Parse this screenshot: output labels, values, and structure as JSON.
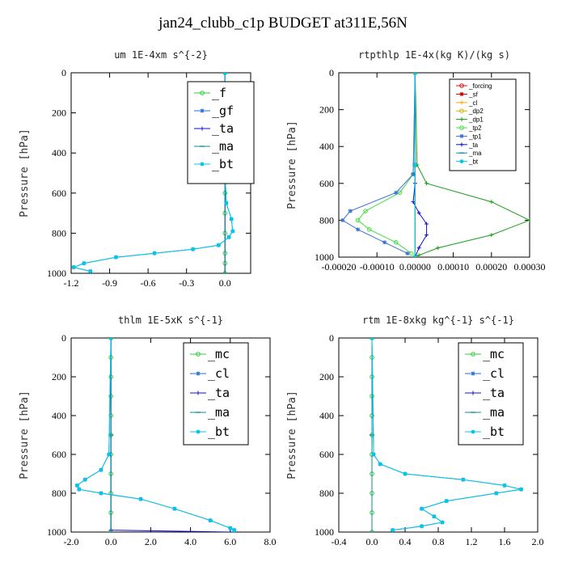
{
  "title": "jan24_clubb_c1p  BUDGET at311E,56N",
  "chart_data": [
    {
      "type": "line",
      "title": "um   1E-4xm s^{-2}",
      "ylabel": "Pressure [hPa]",
      "xlim": [
        -1.2,
        0.2
      ],
      "ylim": [
        1000,
        0
      ],
      "xticks": [
        -1.2,
        -0.9,
        -0.6,
        -0.3,
        0.0
      ],
      "xtick_labels": [
        "-1.2",
        "-0.9",
        "-0.6",
        "-0.3",
        "0.0"
      ],
      "yticks": [
        0,
        200,
        400,
        600,
        800,
        1000
      ],
      "legend_position": "top-right",
      "series": [
        {
          "name": "_f",
          "color": "#2ecc40",
          "marker": "circle",
          "x": [
            0,
            0,
            0,
            0,
            0,
            0,
            0,
            0,
            0,
            0,
            0,
            0
          ],
          "y": [
            0,
            100,
            200,
            300,
            400,
            500,
            600,
            700,
            800,
            900,
            950,
            1000
          ]
        },
        {
          "name": "_gf",
          "color": "#1f6fd6",
          "marker": "star",
          "x": [
            0,
            0,
            0.01,
            0.05,
            0.06,
            0.03,
            -0.05,
            -0.25,
            -0.55,
            -0.85,
            -1.1,
            -1.18,
            -1.05
          ],
          "y": [
            0,
            500,
            650,
            730,
            790,
            820,
            860,
            880,
            900,
            920,
            950,
            970,
            990
          ]
        },
        {
          "name": "_ta",
          "color": "#1010d0",
          "marker": "cross",
          "x": [
            0,
            0,
            0
          ],
          "y": [
            0,
            500,
            1000
          ]
        },
        {
          "name": "_ma",
          "color": "#0e8f8f",
          "marker": "dash",
          "x": [
            0,
            0,
            0
          ],
          "y": [
            0,
            500,
            1000
          ]
        },
        {
          "name": "_bt",
          "color": "#00c8e6",
          "marker": "dot",
          "x": [
            0,
            0,
            0.01,
            0.05,
            0.06,
            0.03,
            -0.05,
            -0.25,
            -0.55,
            -0.85,
            -1.1,
            -1.18,
            -1.05
          ],
          "y": [
            0,
            500,
            650,
            730,
            790,
            820,
            860,
            880,
            900,
            920,
            950,
            970,
            990
          ]
        }
      ]
    },
    {
      "type": "line",
      "title": "rtpthlp   1E-4x(kg K)/(kg s)",
      "ylabel": "Pressure [hPa]",
      "xlim": [
        -0.0002,
        0.0003
      ],
      "ylim": [
        1000,
        0
      ],
      "xticks": [
        -0.0002,
        -0.0001,
        0.0,
        0.0001,
        0.0002,
        0.0003
      ],
      "xtick_labels": [
        "-0.00020",
        "-0.00010",
        "0.00000",
        "0.00010",
        "0.00020",
        "0.00030"
      ],
      "yticks": [
        0,
        200,
        400,
        600,
        800,
        1000
      ],
      "legend_position": "top-right",
      "series": [
        {
          "name": "_forcing",
          "color": "#e01010",
          "marker": "circle",
          "x": [
            0,
            0,
            0
          ],
          "y": [
            0,
            500,
            1000
          ]
        },
        {
          "name": "_sf",
          "color": "#c00000",
          "marker": "star",
          "x": [
            0,
            0,
            0
          ],
          "y": [
            0,
            500,
            1000
          ]
        },
        {
          "name": "_cl",
          "color": "#ffa500",
          "marker": "cross",
          "x": [
            0,
            0,
            0
          ],
          "y": [
            0,
            500,
            1000
          ]
        },
        {
          "name": "_dp2",
          "color": "#d4b000",
          "marker": "circle",
          "x": [
            0,
            0,
            0
          ],
          "y": [
            0,
            500,
            1000
          ]
        },
        {
          "name": "_dp1",
          "color": "#1a9c1a",
          "marker": "cross",
          "x": [
            0,
            5e-06,
            3e-05,
            0.0002,
            0.0003,
            0.0002,
            6e-05,
            1e-05,
            0
          ],
          "y": [
            0,
            500,
            600,
            700,
            800,
            880,
            950,
            990,
            1000
          ]
        },
        {
          "name": "_tp2",
          "color": "#44dd44",
          "marker": "circle",
          "x": [
            0,
            -5e-06,
            -4e-05,
            -0.00013,
            -0.00015,
            -0.00012,
            -5e-05,
            -1e-05
          ],
          "y": [
            0,
            550,
            650,
            750,
            800,
            850,
            920,
            980
          ]
        },
        {
          "name": "_tp1",
          "color": "#3a6fd8",
          "marker": "star",
          "x": [
            0,
            -5e-06,
            -5e-05,
            -0.00017,
            -0.00019,
            -0.00015,
            -8e-05,
            -2e-05
          ],
          "y": [
            0,
            550,
            650,
            750,
            800,
            850,
            920,
            980
          ]
        },
        {
          "name": "_ta",
          "color": "#1010d0",
          "marker": "cross",
          "x": [
            0,
            0,
            -5e-06,
            1e-05,
            3e-05,
            3e-05,
            1e-05,
            0
          ],
          "y": [
            0,
            600,
            700,
            760,
            820,
            880,
            950,
            1000
          ]
        },
        {
          "name": "_ma",
          "color": "#0e8f8f",
          "marker": "dash",
          "x": [
            0,
            0,
            0
          ],
          "y": [
            0,
            500,
            1000
          ]
        },
        {
          "name": "_bt",
          "color": "#00c8e6",
          "marker": "dot",
          "x": [
            0,
            0,
            0
          ],
          "y": [
            0,
            500,
            1000
          ]
        }
      ]
    },
    {
      "type": "line",
      "title": "thlm   1E-5xK s^{-1}",
      "ylabel": "Pressure [hPa]",
      "xlim": [
        -2.0,
        8.0
      ],
      "ylim": [
        1000,
        0
      ],
      "xticks": [
        -2,
        0,
        2,
        4,
        6,
        8
      ],
      "xtick_labels": [
        "-2.0",
        "0.0",
        "2.0",
        "4.0",
        "6.0",
        "8.0"
      ],
      "yticks": [
        0,
        200,
        400,
        600,
        800,
        1000
      ],
      "legend_position": "top-right",
      "series": [
        {
          "name": "_mc",
          "color": "#2ecc40",
          "marker": "circle",
          "x": [
            0,
            0,
            0,
            0,
            0,
            0,
            0,
            0,
            0,
            0,
            0
          ],
          "y": [
            0,
            100,
            200,
            300,
            400,
            500,
            600,
            700,
            800,
            900,
            1000
          ]
        },
        {
          "name": "_cl",
          "color": "#1f6fd6",
          "marker": "star",
          "x": [
            0,
            -0.1,
            -0.5,
            -1.3,
            -1.7,
            -1.6,
            -0.5,
            1.5,
            3.2,
            5.0,
            6.0,
            6.2,
            6.2
          ],
          "y": [
            0,
            600,
            680,
            730,
            760,
            780,
            800,
            830,
            880,
            940,
            980,
            990,
            1000
          ]
        },
        {
          "name": "_ta",
          "color": "#1010d0",
          "marker": "cross",
          "x": [
            0,
            0,
            6.0
          ],
          "y": [
            0,
            990,
            1000
          ]
        },
        {
          "name": "_ma",
          "color": "#0e8f8f",
          "marker": "dash",
          "x": [
            0,
            0,
            0
          ],
          "y": [
            0,
            500,
            1000
          ]
        },
        {
          "name": "_bt",
          "color": "#00c8e6",
          "marker": "dot",
          "x": [
            0,
            -0.1,
            -0.5,
            -1.3,
            -1.7,
            -1.6,
            -0.5,
            1.5,
            3.2,
            5.0,
            6.0,
            6.2,
            6.2
          ],
          "y": [
            0,
            600,
            680,
            730,
            760,
            780,
            800,
            830,
            880,
            940,
            980,
            990,
            1000
          ]
        }
      ]
    },
    {
      "type": "line",
      "title": "rtm   1E-8xkg kg^{-1} s^{-1}",
      "ylabel": "Pressure [hPa]",
      "xlim": [
        -0.4,
        2.0
      ],
      "ylim": [
        1000,
        0
      ],
      "xticks": [
        -0.4,
        0.0,
        0.4,
        0.8,
        1.2,
        1.6,
        2.0
      ],
      "xtick_labels": [
        "-0.4",
        "0.0",
        "0.4",
        "0.8",
        "1.2",
        "1.6",
        "2.0"
      ],
      "yticks": [
        0,
        200,
        400,
        600,
        800,
        1000
      ],
      "legend_position": "top-right",
      "series": [
        {
          "name": "_mc",
          "color": "#2ecc40",
          "marker": "circle",
          "x": [
            0,
            0,
            0,
            0,
            0,
            0,
            0,
            0,
            0,
            0,
            0
          ],
          "y": [
            0,
            100,
            200,
            300,
            400,
            500,
            600,
            700,
            800,
            900,
            1000
          ]
        },
        {
          "name": "_cl",
          "color": "#1f6fd6",
          "marker": "star",
          "x": [
            0,
            0.02,
            0.1,
            0.4,
            1.1,
            1.6,
            1.8,
            1.5,
            0.9,
            0.6,
            0.75,
            0.85,
            0.6,
            0.25
          ],
          "y": [
            0,
            600,
            650,
            700,
            730,
            760,
            780,
            800,
            840,
            880,
            920,
            950,
            970,
            990
          ]
        },
        {
          "name": "_ta",
          "color": "#1010d0",
          "marker": "cross",
          "x": [
            0,
            0,
            0
          ],
          "y": [
            0,
            500,
            1000
          ]
        },
        {
          "name": "_ma",
          "color": "#0e8f8f",
          "marker": "dash",
          "x": [
            0,
            0,
            0
          ],
          "y": [
            0,
            500,
            1000
          ]
        },
        {
          "name": "_bt",
          "color": "#00c8e6",
          "marker": "dot",
          "x": [
            0,
            0.02,
            0.1,
            0.4,
            1.1,
            1.6,
            1.8,
            1.5,
            0.9,
            0.6,
            0.75,
            0.85,
            0.6,
            0.25
          ],
          "y": [
            0,
            600,
            650,
            700,
            730,
            760,
            780,
            800,
            840,
            880,
            920,
            950,
            970,
            990
          ]
        }
      ]
    }
  ]
}
